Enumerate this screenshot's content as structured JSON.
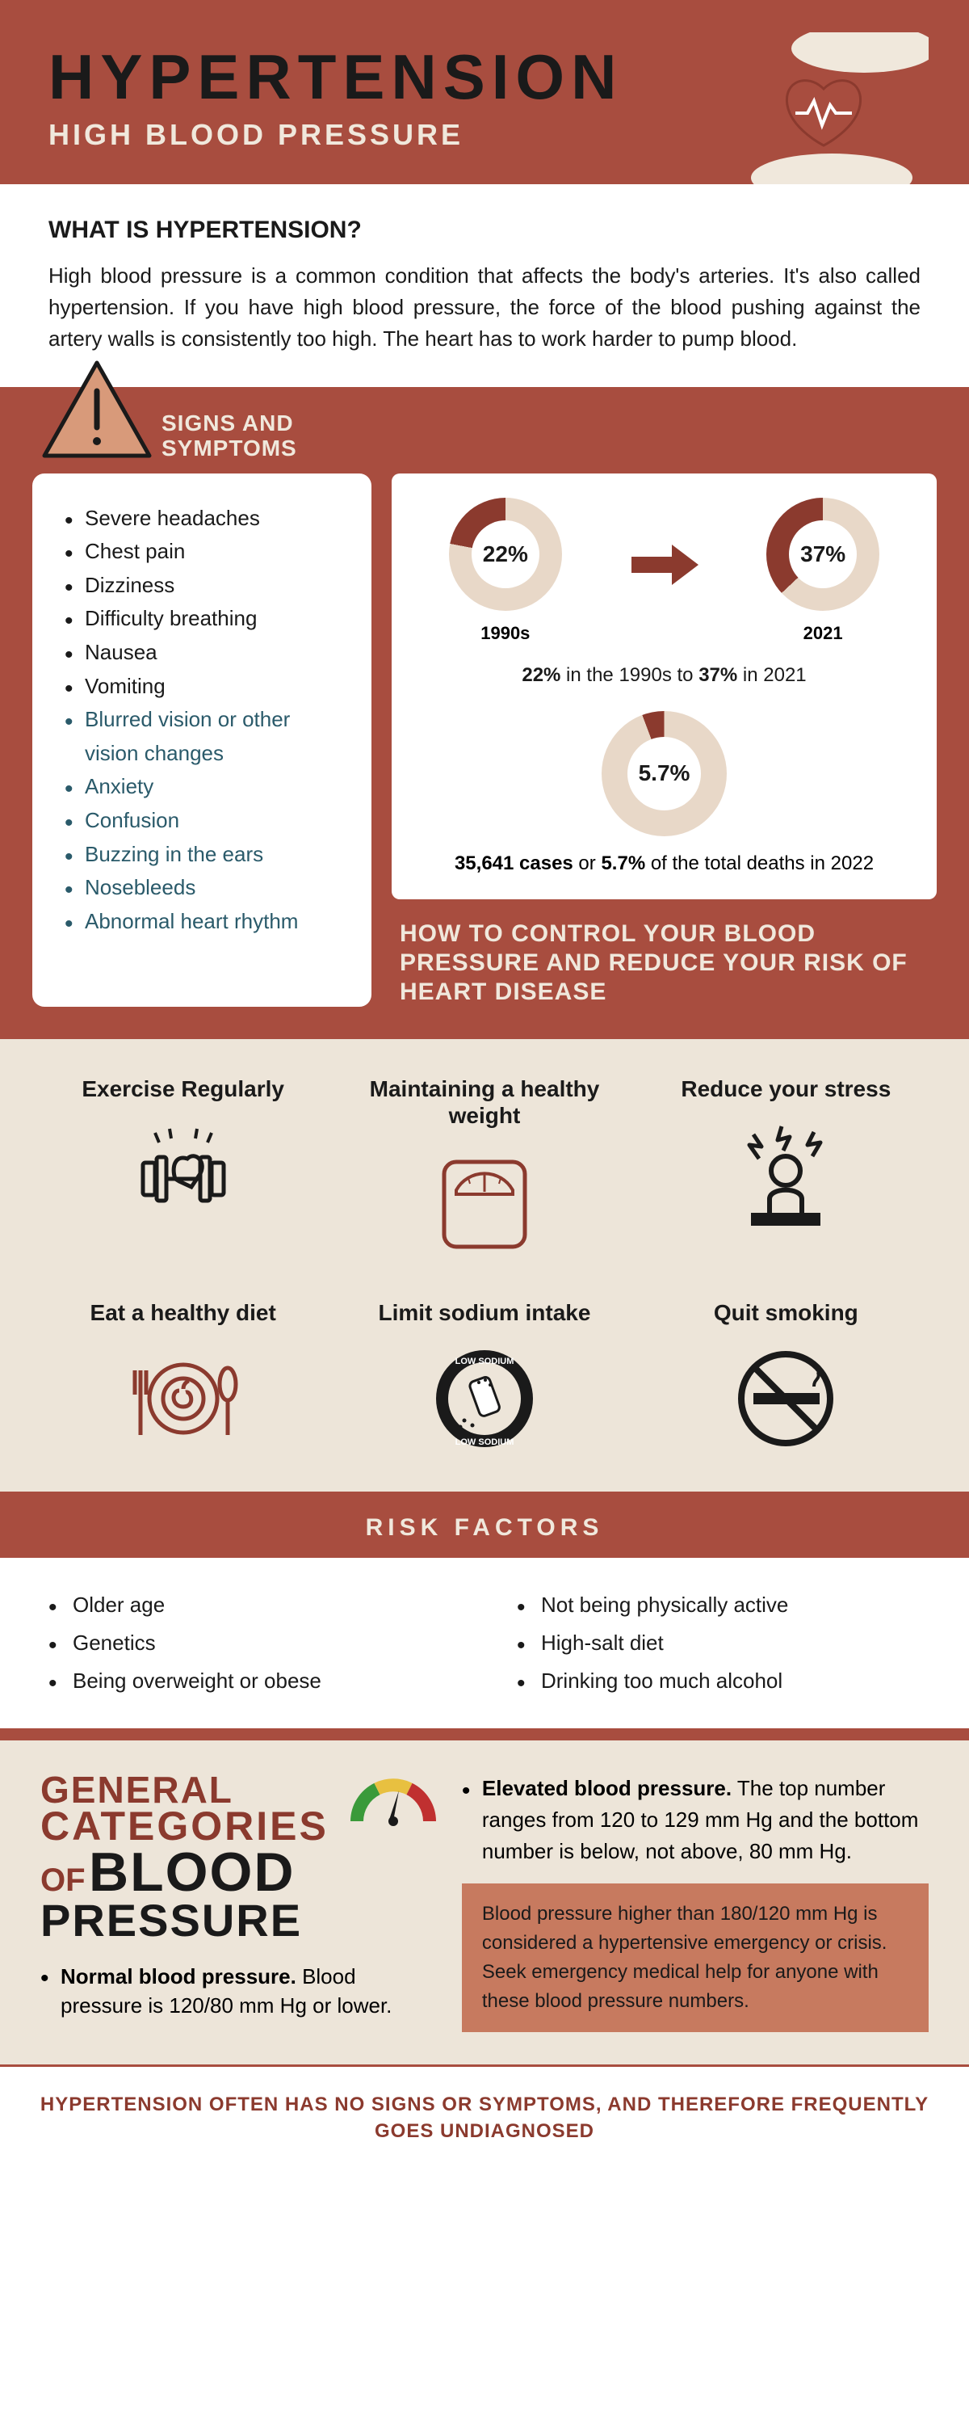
{
  "header": {
    "title": "HYPERTENSION",
    "subtitle": "HIGH BLOOD PRESSURE"
  },
  "intro": {
    "heading": "WHAT IS HYPERTENSION?",
    "body": "High blood pressure is a common condition that affects the body's arteries. It's also called hypertension. If you have high blood pressure, the force of the blood pushing against the artery walls is consistently too high. The heart has to work harder to pump blood."
  },
  "signs": {
    "heading_l1": "SIGNS AND",
    "heading_l2": "SYMPTOMS",
    "primary": [
      "Severe headaches",
      "Chest pain",
      "Dizziness",
      "Difficulty breathing",
      "Nausea",
      "Vomiting"
    ],
    "secondary": [
      "Blurred vision or other vision changes",
      "Anxiety",
      "Confusion",
      "Buzzing in the ears",
      "Nosebleeds",
      "Abnormal heart rhythm"
    ]
  },
  "charts": {
    "donut1": {
      "pct": "22%",
      "label": "1990s",
      "value": 22,
      "fill": "#8b3a2e",
      "track": "#e8d8c8"
    },
    "donut2": {
      "pct": "37%",
      "label": "2021",
      "value": 37,
      "fill": "#8b3a2e",
      "track": "#e8d8c8"
    },
    "caption_pre": "22%",
    "caption_mid": " in the 1990s to ",
    "caption_post": "37%",
    "caption_end": " in 2021",
    "donut3": {
      "pct": "5.7%",
      "value": 5.7,
      "fill": "#8b3a2e",
      "track": "#e8d8c8"
    },
    "deaths_pre": "35,641 cases",
    "deaths_mid": " or ",
    "deaths_pct": "5.7%",
    "deaths_end": " of the total deaths in 2022"
  },
  "control_heading": "HOW TO CONTROL YOUR BLOOD PRESSURE AND REDUCE YOUR RISK OF HEART DISEASE",
  "tips": [
    {
      "title": "Exercise Regularly",
      "icon": "dumbbell"
    },
    {
      "title": "Maintaining a healthy weight",
      "icon": "scale"
    },
    {
      "title": "Reduce your stress",
      "icon": "stress"
    },
    {
      "title": "Eat a healthy diet",
      "icon": "diet"
    },
    {
      "title": "Limit sodium intake",
      "icon": "sodium"
    },
    {
      "title": "Quit smoking",
      "icon": "nosmoking"
    }
  ],
  "risk": {
    "heading": "RISK FACTORS",
    "col1": [
      "Older age",
      "Genetics",
      "Being overweight or obese"
    ],
    "col2": [
      "Not being physically active",
      "High-salt diet",
      "Drinking too much alcohol"
    ]
  },
  "categories": {
    "l1": "GENERAL",
    "l2": "CATEGORIES",
    "of": "OF",
    "l3": "BLOOD",
    "l4": "PRESSURE",
    "normal_label": "Normal blood pressure.",
    "normal_text": " Blood pressure is 120/80 mm Hg or lower.",
    "elevated_label": "Elevated blood pressure.",
    "elevated_text": " The top number ranges from 120 to 129 mm Hg and the bottom number is below, not above, 80 mm Hg.",
    "emergency": "Blood pressure higher than 180/120 mm Hg is considered a hypertensive emergency or crisis. Seek emergency medical help for anyone with these blood pressure numbers."
  },
  "footer": "HYPERTENSION OFTEN HAS NO SIGNS  OR  SYMPTOMS, AND THEREFORE FREQUENTLY GOES UNDIAGNOSED",
  "colors": {
    "brand": "#a84d3f",
    "dark": "#8b3a2e",
    "cream": "#ede5d9",
    "beige": "#f0e8dc"
  }
}
